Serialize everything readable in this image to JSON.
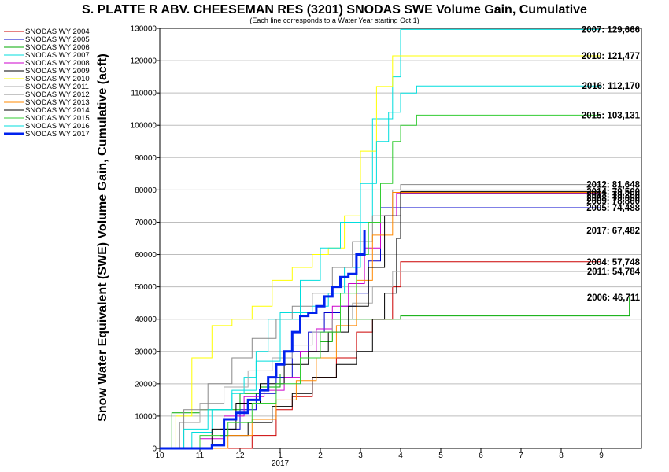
{
  "chart_data": {
    "type": "line",
    "title": "S. PLATTE R ABV. CHEESEMAN RES (3201) SNODAS SWE Volume Gain, Cumulative",
    "subtitle": "(Each line corresponds to a Water Year starting Oct 1)",
    "ylabel": "Snow Water Equivalent (SWE) Volume Gain, Cumulative (acft)",
    "xlabel": "",
    "x_ticks": [
      "10",
      "11",
      "12",
      "1",
      "2",
      "3",
      "4",
      "5",
      "6",
      "7",
      "8",
      "9"
    ],
    "x_year_label": "2017",
    "xlim": [
      10,
      22
    ],
    "ylim": [
      0,
      130000
    ],
    "y_ticks": [
      0,
      10000,
      20000,
      30000,
      40000,
      50000,
      60000,
      70000,
      80000,
      90000,
      100000,
      110000,
      120000,
      130000
    ],
    "grid": true,
    "legend_position": "left",
    "series": [
      {
        "name": "SNODAS WY 2004",
        "color": "#cc0000",
        "width": 1,
        "end_label": "2004: 57,748",
        "x": [
          10,
          12.3,
          12.9,
          13.3,
          13.8,
          14.4,
          14.9,
          15.3,
          15.8,
          16,
          17,
          18,
          19,
          20,
          21
        ],
        "y": [
          0,
          4000,
          12000,
          16000,
          22000,
          28000,
          36000,
          40000,
          50000,
          57748,
          57748,
          57748,
          57748,
          57748,
          57748
        ]
      },
      {
        "name": "SNODAS WY 2005",
        "color": "#0000cc",
        "width": 1,
        "end_label": "2005: 74,488",
        "x": [
          10,
          11.5,
          12,
          12.4,
          12.9,
          13.3,
          13.7,
          14.1,
          14.5,
          14.9,
          15.2,
          15.5,
          16,
          17,
          18,
          19,
          20,
          21
        ],
        "y": [
          0,
          6000,
          12000,
          17000,
          22000,
          30000,
          36000,
          42000,
          44000,
          48000,
          58000,
          74488,
          74488,
          74488,
          74488,
          74488,
          74488,
          74488
        ]
      },
      {
        "name": "SNODAS WY 2006",
        "color": "#00aa00",
        "width": 1,
        "end_label": "2006: 46,711",
        "x": [
          10,
          10.3,
          11,
          12,
          12.5,
          13,
          13.5,
          14,
          14.3,
          14.6,
          15,
          15.3,
          16,
          17,
          18,
          19,
          20,
          21.3,
          21.7
        ],
        "y": [
          0,
          11000,
          12000,
          17000,
          19000,
          23000,
          28000,
          33000,
          40000,
          40000,
          40000,
          40000,
          41000,
          41000,
          41000,
          41000,
          41000,
          41000,
          46711
        ]
      },
      {
        "name": "SNODAS WY 2007",
        "color": "#00dddd",
        "width": 1,
        "end_label": "2007: 129,666",
        "x": [
          10,
          10.8,
          11.3,
          11.8,
          12.1,
          12.4,
          12.7,
          13,
          13.3,
          13.8,
          14.2,
          14.6,
          15,
          15.3,
          15.8,
          16,
          17,
          18,
          19,
          20,
          21
        ],
        "y": [
          0,
          5000,
          12000,
          17000,
          22000,
          30000,
          40000,
          42000,
          42000,
          44000,
          48000,
          56000,
          70000,
          102000,
          115000,
          129666,
          129666,
          129666,
          129666,
          129666,
          129666
        ]
      },
      {
        "name": "SNODAS WY 2008",
        "color": "#cc00cc",
        "width": 1,
        "end_label": "2008: 79,050",
        "x": [
          10,
          11,
          11.6,
          12.1,
          12.6,
          13.1,
          13.5,
          13.9,
          14.3,
          14.7,
          15.1,
          15.5,
          15.9,
          16,
          17,
          18,
          19,
          20,
          21
        ],
        "y": [
          0,
          3000,
          10000,
          16000,
          18000,
          22000,
          30000,
          37000,
          44000,
          51000,
          62000,
          72000,
          79050,
          79050,
          79050,
          79050,
          79050,
          79050,
          79050
        ]
      },
      {
        "name": "SNODAS WY 2009",
        "color": "#000000",
        "width": 1,
        "end_label": "2009: 78,800",
        "x": [
          10,
          11.5,
          12.2,
          12.8,
          13.3,
          13.8,
          14.4,
          14.9,
          15.3,
          15.6,
          15.9,
          16,
          17,
          18,
          19,
          20,
          21
        ],
        "y": [
          0,
          4000,
          8000,
          13000,
          17000,
          22000,
          26000,
          30000,
          40000,
          48000,
          65000,
          78800,
          78800,
          78800,
          78800,
          78800,
          78800
        ]
      },
      {
        "name": "SNODAS WY 2010",
        "color": "#ffff00",
        "width": 1,
        "end_label": "2010: 121,477",
        "x": [
          10,
          10.4,
          10.8,
          11.3,
          11.8,
          12.3,
          12.8,
          13.3,
          13.8,
          14.2,
          14.6,
          15,
          15.4,
          15.8,
          16,
          17,
          18,
          19,
          20,
          21
        ],
        "y": [
          0,
          10000,
          28000,
          38000,
          40000,
          44000,
          52000,
          56000,
          60000,
          62000,
          72000,
          92000,
          112000,
          121477,
          121477,
          121477,
          121477,
          121477,
          121477,
          121477
        ]
      },
      {
        "name": "SNODAS WY 2011",
        "color": "#aaaaaa",
        "width": 1,
        "end_label": "2011: 54,784",
        "x": [
          10,
          10.5,
          11,
          11.6,
          12.2,
          12.8,
          13.3,
          13.8,
          14.3,
          14.8,
          15.3,
          15.8,
          16,
          17,
          18,
          19,
          20,
          21
        ],
        "y": [
          0,
          8000,
          14000,
          19000,
          24000,
          28000,
          32000,
          36000,
          40000,
          45000,
          50000,
          54784,
          54784,
          54784,
          54784,
          54784,
          54784,
          54784
        ]
      },
      {
        "name": "SNODAS WY 2012",
        "color": "#888888",
        "width": 1,
        "end_label": "2012: 81,648",
        "x": [
          10,
          10.6,
          11.2,
          11.8,
          12.3,
          12.9,
          13.3,
          13.8,
          14.3,
          14.8,
          15.3,
          15.8,
          16,
          17,
          18,
          19,
          20,
          21
        ],
        "y": [
          0,
          12000,
          20000,
          28000,
          34000,
          40000,
          44000,
          48000,
          56000,
          64000,
          72000,
          80000,
          81648,
          81648,
          81648,
          81648,
          81648,
          81648
        ]
      },
      {
        "name": "SNODAS WY 2013",
        "color": "#ff8800",
        "width": 1,
        "end_label": "2013: 79,250",
        "x": [
          10,
          11.7,
          12.3,
          12.9,
          13.4,
          13.9,
          14.4,
          14.9,
          15.3,
          15.8,
          16,
          17,
          18,
          19,
          20,
          21
        ],
        "y": [
          0,
          4000,
          9000,
          15000,
          21000,
          28000,
          38000,
          52000,
          66000,
          79250,
          79250,
          79250,
          79250,
          79250,
          79250,
          79250
        ]
      },
      {
        "name": "SNODAS WY 2014",
        "color": "#000000",
        "width": 1,
        "end_label": "2014: 79,500",
        "x": [
          10,
          11.3,
          11.9,
          12.5,
          13.1,
          13.7,
          14.2,
          14.7,
          15.2,
          15.6,
          16,
          17,
          18,
          19,
          20,
          21
        ],
        "y": [
          0,
          6000,
          14000,
          20000,
          26000,
          30000,
          36000,
          44000,
          56000,
          72000,
          79500,
          79500,
          79500,
          79500,
          79500,
          79500
        ]
      },
      {
        "name": "SNODAS WY 2015",
        "color": "#33cc33",
        "width": 1,
        "end_label": "2015: 103,131",
        "x": [
          10,
          11,
          11.7,
          12.3,
          12.9,
          13.5,
          14,
          14.5,
          14.9,
          15.2,
          15.5,
          15.8,
          16,
          16.4,
          17,
          18,
          19,
          20,
          21
        ],
        "y": [
          0,
          4000,
          8000,
          14000,
          20000,
          28000,
          36000,
          48000,
          60000,
          70000,
          82000,
          95000,
          100000,
          103131,
          103131,
          103131,
          103131,
          103131,
          103131
        ]
      },
      {
        "name": "SNODAS WY 2016",
        "color": "#00dddd",
        "width": 1,
        "end_label": "2016: 112,170",
        "x": [
          10,
          10.6,
          11.2,
          11.8,
          12.4,
          13,
          13.5,
          14,
          14.5,
          15,
          15.4,
          15.7,
          16,
          16.4,
          17,
          18,
          19,
          20,
          21
        ],
        "y": [
          0,
          6000,
          12000,
          18000,
          27000,
          40000,
          52000,
          62000,
          70000,
          82000,
          95000,
          104000,
          110000,
          112170,
          112170,
          112170,
          112170,
          112170,
          112170
        ]
      },
      {
        "name": "SNODAS WY 2017",
        "color": "#0022ee",
        "width": 3,
        "end_label": "2017: 67,482",
        "x": [
          10,
          11.3,
          11.6,
          11.9,
          12.2,
          12.5,
          12.7,
          12.9,
          13.1,
          13.3,
          13.5,
          13.7,
          13.9,
          14.1,
          14.3,
          14.5,
          14.7,
          14.9,
          15.1
        ],
        "y": [
          0,
          1000,
          9000,
          11000,
          15000,
          18000,
          22000,
          26000,
          30000,
          36000,
          41000,
          42000,
          44000,
          47000,
          50000,
          53000,
          54000,
          60000,
          67482
        ]
      }
    ]
  }
}
